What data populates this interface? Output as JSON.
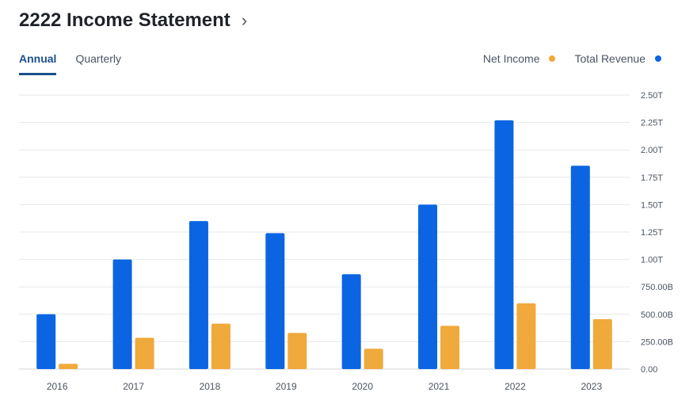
{
  "header": {
    "title": "2222 Income Statement",
    "chevron": "›"
  },
  "tabs": [
    {
      "label": "Annual",
      "active": true
    },
    {
      "label": "Quarterly",
      "active": false
    }
  ],
  "legend": [
    {
      "label": "Net Income",
      "color": "#f0a93b"
    },
    {
      "label": "Total Revenue",
      "color": "#0b65e3"
    }
  ],
  "chart_data": {
    "type": "bar",
    "categories": [
      "2016",
      "2017",
      "2018",
      "2019",
      "2020",
      "2021",
      "2022",
      "2023"
    ],
    "series": [
      {
        "name": "Total Revenue",
        "color": "#0b65e3",
        "values": [
          0.5,
          1.0,
          1.35,
          1.24,
          0.865,
          1.5,
          2.27,
          1.855
        ]
      },
      {
        "name": "Net Income",
        "color": "#f0a93b",
        "values": [
          0.048,
          0.285,
          0.415,
          0.33,
          0.185,
          0.395,
          0.6,
          0.455
        ]
      }
    ],
    "unit": "trillions",
    "ylim": [
      0,
      2.5
    ],
    "yticks": [
      {
        "value": 0,
        "label": "0.00"
      },
      {
        "value": 0.25,
        "label": "250.00B"
      },
      {
        "value": 0.5,
        "label": "500.00B"
      },
      {
        "value": 0.75,
        "label": "750.00B"
      },
      {
        "value": 1.0,
        "label": "1.00T"
      },
      {
        "value": 1.25,
        "label": "1.25T"
      },
      {
        "value": 1.5,
        "label": "1.50T"
      },
      {
        "value": 1.75,
        "label": "1.75T"
      },
      {
        "value": 2.0,
        "label": "2.00T"
      },
      {
        "value": 2.25,
        "label": "2.25T"
      },
      {
        "value": 2.5,
        "label": "2.50T"
      }
    ],
    "grid": true,
    "legend_position": "top-right"
  }
}
